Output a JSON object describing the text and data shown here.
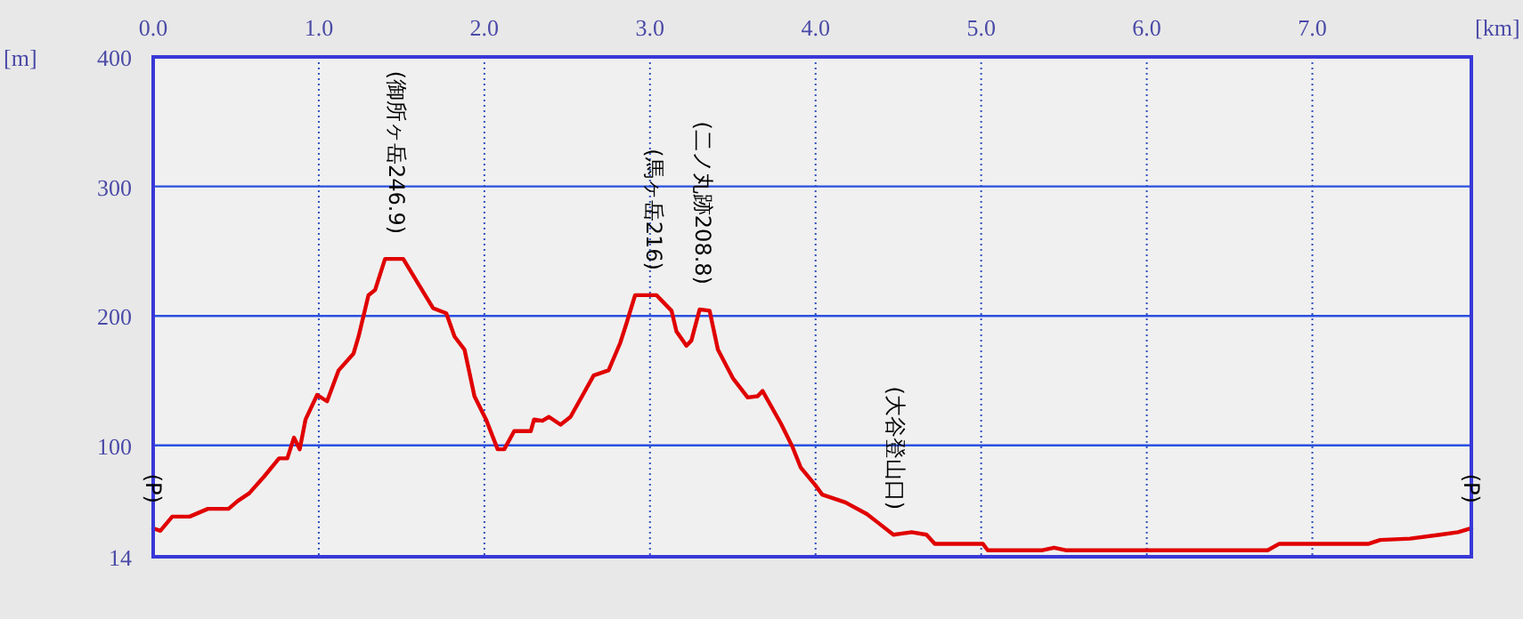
{
  "chart_data": {
    "type": "line",
    "xlabel": "[km]",
    "ylabel": "[m]",
    "x": [
      0,
      0.043,
      0.115,
      0.22,
      0.33,
      0.455,
      0.51,
      0.58,
      0.67,
      0.76,
      0.81,
      0.85,
      0.885,
      0.92,
      0.99,
      1.05,
      1.12,
      1.21,
      1.24,
      1.3,
      1.34,
      1.4,
      1.51,
      1.6,
      1.69,
      1.77,
      1.82,
      1.88,
      1.94,
      2.01,
      2.08,
      2.12,
      2.18,
      2.28,
      2.3,
      2.35,
      2.39,
      2.46,
      2.52,
      2.59,
      2.66,
      2.75,
      2.82,
      2.86,
      2.91,
      3.04,
      3.13,
      3.16,
      3.22,
      3.25,
      3.3,
      3.36,
      3.41,
      3.5,
      3.59,
      3.65,
      3.68,
      3.79,
      3.86,
      3.91,
      4.0,
      4.04,
      4.18,
      4.31,
      4.38,
      4.47,
      4.58,
      4.67,
      4.72,
      5.01,
      5.04,
      5.37,
      5.44,
      5.51,
      6.73,
      6.8,
      7.34,
      7.41,
      7.59,
      7.77,
      7.88,
      7.96
    ],
    "series": [
      {
        "color": "#e00000",
        "values": [
          36,
          34,
          45,
          45,
          51,
          51,
          57,
          63,
          76,
          90,
          90,
          106,
          97,
          120,
          139,
          134,
          158,
          171,
          184,
          216,
          220,
          244,
          244,
          225,
          206,
          202,
          184,
          174,
          138,
          120,
          97,
          97,
          111,
          111,
          120,
          119,
          122,
          116,
          122,
          138,
          154,
          158,
          179,
          195,
          216,
          216,
          204,
          188,
          177,
          181,
          205,
          204,
          174,
          152,
          137,
          138,
          142,
          117,
          99,
          83,
          69,
          62,
          56,
          47,
          40,
          31,
          33,
          31,
          24,
          24,
          19,
          19,
          21,
          19,
          19,
          24,
          24,
          27,
          28,
          31,
          33,
          36
        ]
      }
    ],
    "xlim": [
      0,
      7.96
    ],
    "ylim": [
      14,
      400
    ],
    "xticks": [
      {
        "value": 0,
        "label": "0.0"
      },
      {
        "value": 1,
        "label": "1.0"
      },
      {
        "value": 2,
        "label": "2.0"
      },
      {
        "value": 3,
        "label": "3.0"
      },
      {
        "value": 4,
        "label": "4.0"
      },
      {
        "value": 5,
        "label": "5.0"
      },
      {
        "value": 6,
        "label": "6.0"
      },
      {
        "value": 7,
        "label": "7.0"
      }
    ],
    "yticks": [
      14,
      100,
      200,
      300,
      400
    ],
    "grid": true,
    "annotations": [
      {
        "text": "(P)",
        "x": 0,
        "y": 36
      },
      {
        "text": "(御所ヶ岳246.9)",
        "x": 1.47,
        "y": 244
      },
      {
        "text": "(馬ヶ岳216)",
        "x": 3.02,
        "y": 216
      },
      {
        "text": "(二ノ丸跡208.8)",
        "x": 3.32,
        "y": 205
      },
      {
        "text": "(大谷登山口)",
        "x": 4.48,
        "y": 31
      },
      {
        "text": "(P)",
        "x": 7.96,
        "y": 36
      }
    ]
  }
}
